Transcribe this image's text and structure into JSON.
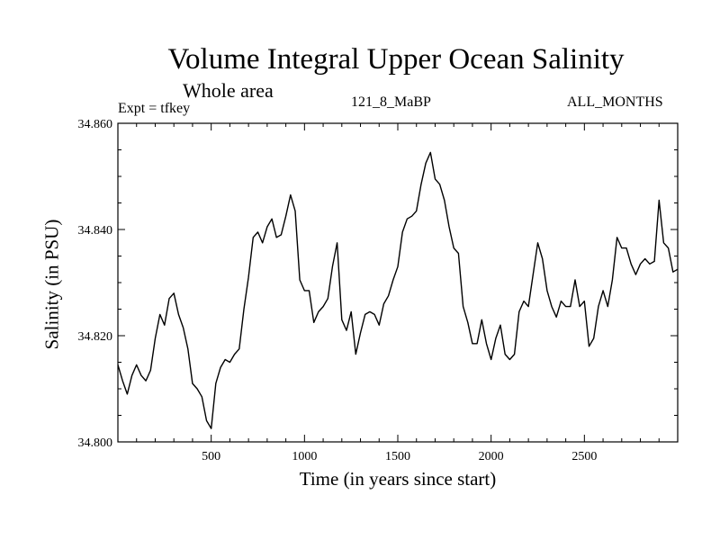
{
  "chart_data": {
    "type": "line",
    "title": "Volume Integral Upper Ocean Salinity",
    "subtitle": "Whole area",
    "annotations": {
      "experiment": "Expt = tfkey",
      "run": "121_8_MaBP",
      "months": "ALL_MONTHS"
    },
    "xlabel": "Time (in years since start)",
    "ylabel": "Salinity (in PSU)",
    "xlim": [
      0,
      3000
    ],
    "ylim": [
      34.8,
      34.86
    ],
    "xticks": [
      500,
      1000,
      1500,
      2000,
      2500
    ],
    "xtick_labels": [
      "500",
      "1000",
      "1500",
      "2000",
      "2500"
    ],
    "yticks": [
      34.8,
      34.82,
      34.84,
      34.86
    ],
    "ytick_labels": [
      "34.800",
      "34.820",
      "34.840",
      "34.860"
    ],
    "grid": false,
    "series": [
      {
        "color": "#000000",
        "x": [
          0,
          25,
          50,
          75,
          100,
          125,
          150,
          175,
          200,
          225,
          250,
          275,
          300,
          325,
          350,
          375,
          400,
          425,
          450,
          475,
          500,
          525,
          550,
          575,
          600,
          625,
          650,
          675,
          700,
          725,
          750,
          775,
          800,
          825,
          850,
          875,
          900,
          925,
          950,
          975,
          1000,
          1025,
          1050,
          1075,
          1100,
          1125,
          1150,
          1175,
          1200,
          1225,
          1250,
          1275,
          1300,
          1325,
          1350,
          1375,
          1400,
          1425,
          1450,
          1475,
          1500,
          1525,
          1550,
          1575,
          1600,
          1625,
          1650,
          1675,
          1700,
          1725,
          1750,
          1775,
          1800,
          1825,
          1850,
          1875,
          1900,
          1925,
          1950,
          1975,
          2000,
          2025,
          2050,
          2075,
          2100,
          2125,
          2150,
          2175,
          2200,
          2225,
          2250,
          2275,
          2300,
          2325,
          2350,
          2375,
          2400,
          2425,
          2450,
          2475,
          2500,
          2525,
          2550,
          2575,
          2600,
          2625,
          2650,
          2675,
          2700,
          2725,
          2750,
          2775,
          2800,
          2825,
          2850,
          2875,
          2900,
          2925,
          2950,
          2975,
          3000
        ],
        "y": [
          34.8145,
          34.8115,
          34.809,
          34.8125,
          34.8145,
          34.8125,
          34.8115,
          34.8135,
          34.8195,
          34.824,
          34.822,
          34.827,
          34.828,
          34.824,
          34.8215,
          34.8175,
          34.811,
          34.81,
          34.8085,
          34.804,
          34.8025,
          34.811,
          34.814,
          34.8155,
          34.815,
          34.8165,
          34.8175,
          34.825,
          34.831,
          34.8385,
          34.8395,
          34.8375,
          34.8405,
          34.842,
          34.8385,
          34.839,
          34.8425,
          34.8465,
          34.8435,
          34.8305,
          34.8285,
          34.8285,
          34.8225,
          34.8245,
          34.8255,
          34.827,
          34.833,
          34.8375,
          34.823,
          34.821,
          34.8245,
          34.8165,
          34.8205,
          34.824,
          34.8245,
          34.824,
          34.822,
          34.826,
          34.8275,
          34.8305,
          34.833,
          34.8395,
          34.842,
          34.8425,
          34.8435,
          34.8485,
          34.8525,
          34.8545,
          34.8495,
          34.8485,
          34.8455,
          34.8405,
          34.8365,
          34.8355,
          34.8255,
          34.8225,
          34.8185,
          34.8185,
          34.823,
          34.8185,
          34.8155,
          34.8195,
          34.822,
          34.8165,
          34.8155,
          34.8165,
          34.8245,
          34.8265,
          34.8255,
          34.8315,
          34.8375,
          34.8345,
          34.8285,
          34.8255,
          34.8235,
          34.8265,
          34.8255,
          34.8255,
          34.8305,
          34.8255,
          34.8265,
          34.818,
          34.8195,
          34.8255,
          34.8285,
          34.8255,
          34.8305,
          34.8385,
          34.8365,
          34.8365,
          34.8335,
          34.8315,
          34.8335,
          34.8345,
          34.8335,
          34.834,
          34.8455,
          34.8375,
          34.8365,
          34.832,
          34.8325
        ]
      }
    ]
  }
}
